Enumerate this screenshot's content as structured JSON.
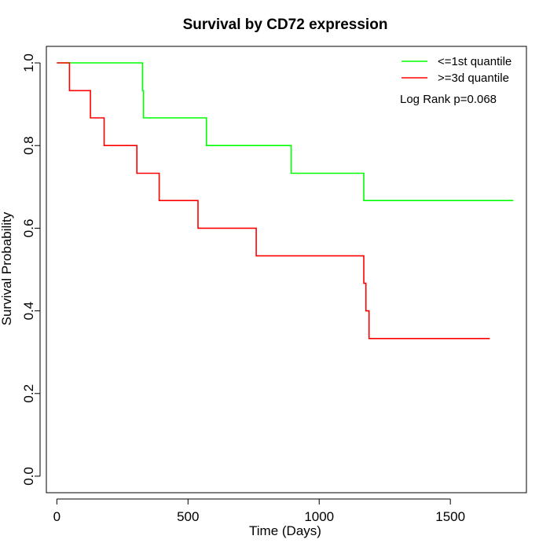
{
  "chart_data": {
    "type": "line",
    "title": "Survival by CD72 expression",
    "xlabel": "Time (Days)",
    "ylabel": "Survival Probability",
    "xlim": [
      -40,
      1790
    ],
    "ylim": [
      -0.04,
      1.04
    ],
    "xticks": [
      0,
      500,
      1000,
      1500
    ],
    "yticks": [
      0.0,
      0.2,
      0.4,
      0.6,
      0.8,
      1.0
    ],
    "xtick_labels": [
      "0",
      "500",
      "1000",
      "1500"
    ],
    "ytick_labels": [
      "0.0",
      "0.2",
      "0.4",
      "0.6",
      "0.8",
      "1.0"
    ],
    "legend_position": "top-right",
    "annotation": "Log Rank p=0.068",
    "series": [
      {
        "name": "<=1st quantile",
        "color": "#00ff00",
        "step_points": [
          [
            0,
            1.0
          ],
          [
            327,
            1.0
          ],
          [
            327,
            0.933
          ],
          [
            330,
            0.933
          ],
          [
            330,
            0.867
          ],
          [
            570,
            0.867
          ],
          [
            570,
            0.8
          ],
          [
            893,
            0.8
          ],
          [
            893,
            0.733
          ],
          [
            1170,
            0.733
          ],
          [
            1170,
            0.667
          ],
          [
            1740,
            0.667
          ]
        ]
      },
      {
        "name": ">=3d quantile",
        "color": "#ff0000",
        "step_points": [
          [
            0,
            1.0
          ],
          [
            48,
            1.0
          ],
          [
            48,
            0.933
          ],
          [
            128,
            0.933
          ],
          [
            128,
            0.867
          ],
          [
            180,
            0.867
          ],
          [
            180,
            0.8
          ],
          [
            305,
            0.8
          ],
          [
            305,
            0.733
          ],
          [
            390,
            0.733
          ],
          [
            390,
            0.667
          ],
          [
            538,
            0.667
          ],
          [
            538,
            0.6
          ],
          [
            760,
            0.6
          ],
          [
            760,
            0.533
          ],
          [
            1170,
            0.533
          ],
          [
            1170,
            0.467
          ],
          [
            1178,
            0.467
          ],
          [
            1178,
            0.4
          ],
          [
            1190,
            0.4
          ],
          [
            1190,
            0.333
          ],
          [
            1650,
            0.333
          ]
        ]
      }
    ]
  }
}
